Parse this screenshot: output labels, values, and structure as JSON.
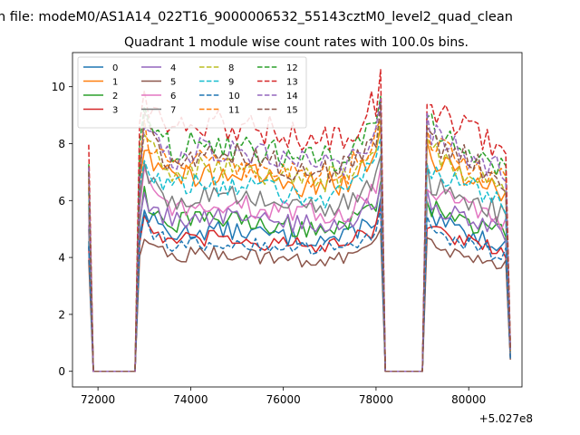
{
  "suptitle": "n file: modeM0/AS1A14_022T16_9000006532_55143cztM0_level2_quad_clean",
  "chart_data": {
    "type": "line",
    "title": "Quadrant 1 module wise count rates with 100.0s bins.",
    "xlabel": "",
    "ylabel": "",
    "x_offset_label": "+5.027e8",
    "xlim": [
      71450,
      81150
    ],
    "ylim": [
      -0.55,
      11.2
    ],
    "xticks": [
      72000,
      74000,
      76000,
      78000,
      80000
    ],
    "xtick_labels": [
      "72000",
      "74000",
      "76000",
      "78000",
      "80000"
    ],
    "yticks": [
      0,
      2,
      4,
      6,
      8,
      10
    ],
    "ytick_labels": [
      "0",
      "2",
      "4",
      "6",
      "8",
      "10"
    ],
    "grid": false,
    "legend": {
      "location": "top-left",
      "columns": 4
    },
    "segments": [
      {
        "start": 71800,
        "end": 72800
      },
      {
        "start": 72900,
        "end": 78100
      },
      {
        "start": 78200,
        "end": 79000
      },
      {
        "start": 79100,
        "end": 80900
      }
    ],
    "series": [
      {
        "name": "0",
        "color": "#1f77b4",
        "dashed": false,
        "level": 4.9
      },
      {
        "name": "1",
        "color": "#ff7f0e",
        "dashed": false,
        "level": 6.9
      },
      {
        "name": "2",
        "color": "#2ca02c",
        "dashed": false,
        "level": 5.3
      },
      {
        "name": "3",
        "color": "#d62728",
        "dashed": false,
        "level": 4.6
      },
      {
        "name": "4",
        "color": "#9467bd",
        "dashed": false,
        "level": 5.4
      },
      {
        "name": "5",
        "color": "#8c564b",
        "dashed": false,
        "level": 4.1
      },
      {
        "name": "6",
        "color": "#e377c2",
        "dashed": false,
        "level": 5.8
      },
      {
        "name": "7",
        "color": "#7f7f7f",
        "dashed": false,
        "level": 6.1
      },
      {
        "name": "8",
        "color": "#bcbd22",
        "dashed": true,
        "level": 7.1
      },
      {
        "name": "9",
        "color": "#17becf",
        "dashed": true,
        "level": 6.5
      },
      {
        "name": "10",
        "color": "#1f77b4",
        "dashed": true,
        "level": 4.5
      },
      {
        "name": "11",
        "color": "#ff7f0e",
        "dashed": true,
        "level": 7.3
      },
      {
        "name": "12",
        "color": "#2ca02c",
        "dashed": true,
        "level": 7.9
      },
      {
        "name": "13",
        "color": "#d62728",
        "dashed": true,
        "level": 8.6
      },
      {
        "name": "14",
        "color": "#9467bd",
        "dashed": true,
        "level": 7.7
      },
      {
        "name": "15",
        "color": "#8c564b",
        "dashed": true,
        "level": 7.5
      }
    ]
  }
}
